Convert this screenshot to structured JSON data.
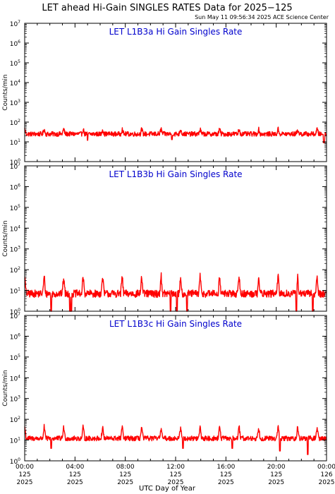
{
  "title": "LET ahead Hi-Gain SINGLES RATES Data for 2025−125",
  "timestamp": "Sun May 11 09:56:34 2025 ACE Science Center",
  "xlabel": "UTC Day of Year",
  "colors": {
    "trace": "#ff0000",
    "panel_title": "#0000cc",
    "axes": "#000000"
  },
  "chart_data": [
    {
      "type": "line",
      "title": "LET L1B3a Hi Gain Singles Rate",
      "ylabel": "Counts/min",
      "yscale": "log",
      "ylim": [
        1,
        10000000
      ],
      "yticks": [
        1,
        10,
        100,
        1000,
        10000,
        100000,
        1000000,
        10000000
      ],
      "ytick_labels": [
        {
          "base": "10",
          "exp": "0"
        },
        {
          "base": "10",
          "exp": "1"
        },
        {
          "base": "10",
          "exp": "2"
        },
        {
          "base": "10",
          "exp": "3"
        },
        {
          "base": "10",
          "exp": "4"
        },
        {
          "base": "10",
          "exp": "5"
        },
        {
          "base": "10",
          "exp": "6"
        },
        {
          "base": "10",
          "exp": "7"
        }
      ],
      "xlim_hours": [
        0,
        24
      ],
      "series": [
        {
          "baseline": 25,
          "spread_decades": 0.12,
          "spike_period_hours": 1.55,
          "spike_peak": 45,
          "dips": [
            [
              5.0,
              12
            ],
            [
              11.7,
              13
            ],
            [
              23.8,
              9
            ]
          ]
        }
      ]
    },
    {
      "type": "line",
      "title": "LET L1B3b Hi Gain Singles Rate",
      "ylabel": "Counts/min",
      "yscale": "log",
      "ylim": [
        1,
        10000000
      ],
      "yticks": [
        1,
        10,
        100,
        1000,
        10000,
        100000,
        1000000,
        10000000
      ],
      "ytick_labels": [
        {
          "base": "10",
          "exp": "0"
        },
        {
          "base": "10",
          "exp": "1"
        },
        {
          "base": "10",
          "exp": "2"
        },
        {
          "base": "10",
          "exp": "3"
        },
        {
          "base": "10",
          "exp": "4"
        },
        {
          "base": "10",
          "exp": "5"
        },
        {
          "base": "10",
          "exp": "6"
        },
        {
          "base": "10",
          "exp": "7"
        }
      ],
      "xlim_hours": [
        0,
        24
      ],
      "series": [
        {
          "baseline": 7,
          "spread_decades": 0.18,
          "spike_period_hours": 1.55,
          "spike_peak": 50,
          "dips": [
            [
              2.1,
              1
            ],
            [
              3.6,
              1
            ],
            [
              3.7,
              1
            ],
            [
              11.6,
              1
            ],
            [
              12.1,
              1
            ],
            [
              12.9,
              1
            ],
            [
              21.6,
              1
            ],
            [
              22.9,
              1
            ]
          ]
        }
      ]
    },
    {
      "type": "line",
      "title": "LET L1B3c Hi Gain Singles Rate",
      "ylabel": "Counts/min",
      "yscale": "log",
      "ylim": [
        1,
        10000000
      ],
      "yticks": [
        1,
        10,
        100,
        1000,
        10000,
        100000,
        1000000,
        10000000
      ],
      "ytick_labels": [
        {
          "base": "10",
          "exp": "0"
        },
        {
          "base": "10",
          "exp": "1"
        },
        {
          "base": "10",
          "exp": "2"
        },
        {
          "base": "10",
          "exp": "3"
        },
        {
          "base": "10",
          "exp": "4"
        },
        {
          "base": "10",
          "exp": "5"
        },
        {
          "base": "10",
          "exp": "6"
        },
        {
          "base": "10",
          "exp": "7"
        }
      ],
      "xlim_hours": [
        0,
        24
      ],
      "series": [
        {
          "baseline": 12,
          "spread_decades": 0.12,
          "spike_period_hours": 1.55,
          "spike_peak": 45,
          "dips": [
            [
              2.1,
              4
            ],
            [
              12.6,
              4
            ],
            [
              16.5,
              4
            ],
            [
              20.3,
              3
            ],
            [
              22.5,
              2
            ]
          ]
        }
      ]
    }
  ],
  "xticks": [
    {
      "hours": 0,
      "time": "00:00",
      "doy": "125",
      "year": "2025"
    },
    {
      "hours": 4,
      "time": "04:00",
      "doy": "125",
      "year": "2025"
    },
    {
      "hours": 8,
      "time": "08:00",
      "doy": "125",
      "year": "2025"
    },
    {
      "hours": 12,
      "time": "12:00",
      "doy": "125",
      "year": "2025"
    },
    {
      "hours": 16,
      "time": "16:00",
      "doy": "125",
      "year": "2025"
    },
    {
      "hours": 20,
      "time": "20:00",
      "doy": "125",
      "year": "2025"
    },
    {
      "hours": 24,
      "time": "00:00",
      "doy": "126",
      "year": "2025"
    }
  ]
}
